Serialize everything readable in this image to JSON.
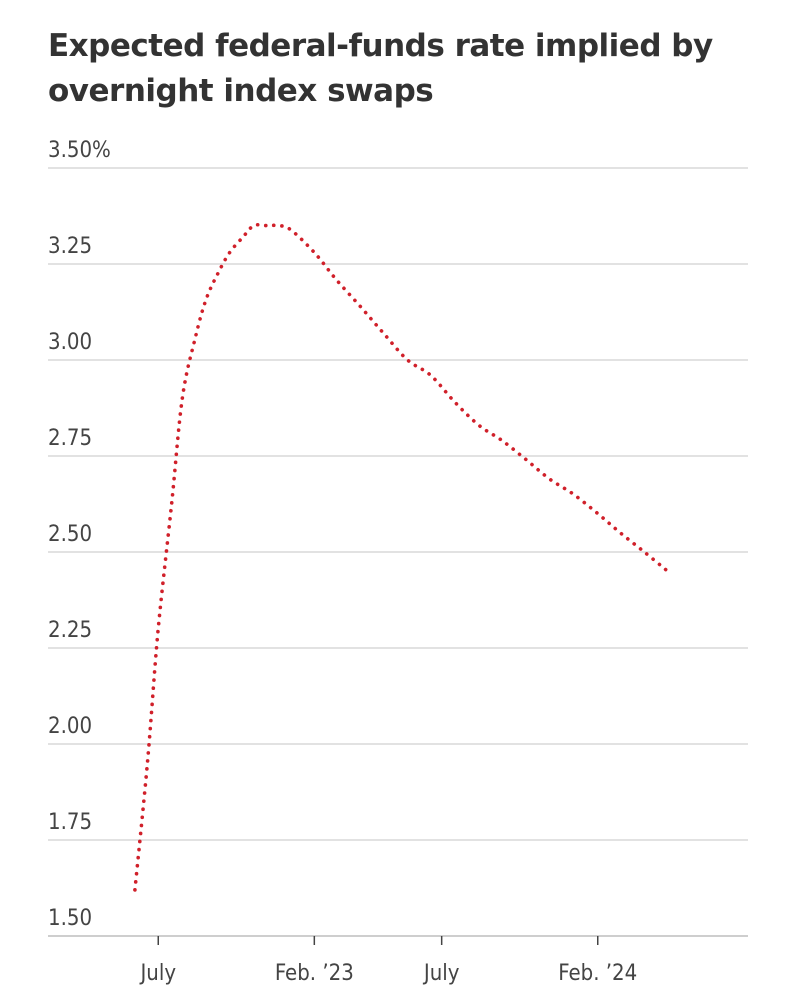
{
  "chart_data": {
    "type": "line",
    "title": "Expected federal-funds rate implied by overnight index swaps",
    "xlabel": "",
    "ylabel": "",
    "ylim": [
      1.5,
      3.5
    ],
    "yticks": [
      {
        "value": 3.5,
        "label": "3.50%"
      },
      {
        "value": 3.25,
        "label": "3.25"
      },
      {
        "value": 3.0,
        "label": "3.00"
      },
      {
        "value": 2.75,
        "label": "2.75"
      },
      {
        "value": 2.5,
        "label": "2.50"
      },
      {
        "value": 2.25,
        "label": "2.25"
      },
      {
        "value": 2.0,
        "label": "2.00"
      },
      {
        "value": 1.75,
        "label": "1.75"
      },
      {
        "value": 1.5,
        "label": "1.50"
      }
    ],
    "xlim": [
      "2022-05-01",
      "2024-07-10"
    ],
    "xticks": [
      {
        "date": "2022-07-15",
        "label": "July"
      },
      {
        "date": "2023-02-01",
        "label": "Feb. ’23"
      },
      {
        "date": "2023-07-15",
        "label": "July"
      },
      {
        "date": "2024-02-01",
        "label": "Feb. ’24"
      }
    ],
    "grid": true,
    "series": [
      {
        "color": "#d0202a",
        "style": "dotted",
        "points": [
          {
            "date": "2022-06-15",
            "y": 1.62
          },
          {
            "date": "2022-07-01",
            "y": 1.95
          },
          {
            "date": "2022-07-15",
            "y": 2.3
          },
          {
            "date": "2022-08-01",
            "y": 2.62
          },
          {
            "date": "2022-08-15",
            "y": 2.9
          },
          {
            "date": "2022-09-01",
            "y": 3.06
          },
          {
            "date": "2022-09-15",
            "y": 3.16
          },
          {
            "date": "2022-10-01",
            "y": 3.23
          },
          {
            "date": "2022-10-15",
            "y": 3.28
          },
          {
            "date": "2022-11-01",
            "y": 3.32
          },
          {
            "date": "2022-11-15",
            "y": 3.35
          },
          {
            "date": "2022-12-01",
            "y": 3.35
          },
          {
            "date": "2022-12-15",
            "y": 3.35
          },
          {
            "date": "2023-01-01",
            "y": 3.34
          },
          {
            "date": "2023-02-01",
            "y": 3.28
          },
          {
            "date": "2023-03-01",
            "y": 3.21
          },
          {
            "date": "2023-04-01",
            "y": 3.14
          },
          {
            "date": "2023-05-01",
            "y": 3.07
          },
          {
            "date": "2023-06-01",
            "y": 3.0
          },
          {
            "date": "2023-07-01",
            "y": 2.96
          },
          {
            "date": "2023-08-01",
            "y": 2.89
          },
          {
            "date": "2023-09-01",
            "y": 2.83
          },
          {
            "date": "2023-10-01",
            "y": 2.79
          },
          {
            "date": "2023-11-01",
            "y": 2.74
          },
          {
            "date": "2023-12-01",
            "y": 2.69
          },
          {
            "date": "2024-01-01",
            "y": 2.65
          },
          {
            "date": "2024-02-01",
            "y": 2.6
          },
          {
            "date": "2024-03-01",
            "y": 2.55
          },
          {
            "date": "2024-04-01",
            "y": 2.5
          },
          {
            "date": "2024-05-01",
            "y": 2.45
          }
        ]
      }
    ]
  }
}
